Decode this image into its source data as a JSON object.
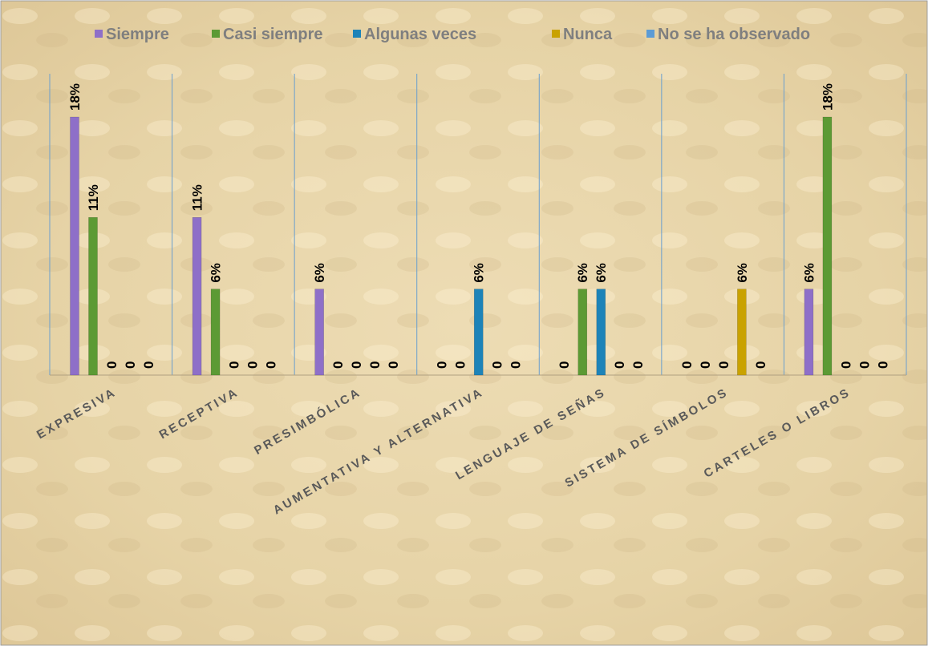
{
  "chart_data": {
    "type": "bar",
    "categories": [
      "EXPRESIVA",
      "RECEPTIVA",
      "PRESIMBÓLICA",
      "AUMENTATIVA Y ALTERNATIVA",
      "LENGUAJE DE SEÑAS",
      "SISTEMA DE SÍMBOLOS",
      "CARTELES O LIBROS"
    ],
    "series": [
      {
        "name": "Siempre",
        "color": "#8e6fc8",
        "values": [
          18,
          11,
          6,
          0,
          0,
          0,
          6
        ],
        "value_labels": [
          "18%",
          "11%",
          "6%",
          "0",
          "0",
          "0",
          "6%"
        ]
      },
      {
        "name": "Casi siempre",
        "color": "#5c9a34",
        "values": [
          11,
          6,
          0,
          0,
          6,
          0,
          18
        ],
        "value_labels": [
          "11%",
          "6%",
          "0",
          "0",
          "6%",
          "0",
          "18%"
        ]
      },
      {
        "name": "Algunas veces",
        "color": "#1d83b8",
        "values": [
          0,
          0,
          0,
          6,
          6,
          0,
          0
        ],
        "value_labels": [
          "0",
          "0",
          "0",
          "6%",
          "6%",
          "0",
          "0"
        ]
      },
      {
        "name": "Nunca",
        "color": "#c9a200",
        "values": [
          0,
          0,
          0,
          0,
          0,
          6,
          0
        ],
        "value_labels": [
          "0",
          "0",
          "0",
          "0",
          "0",
          "6%",
          "0"
        ]
      },
      {
        "name": "No se ha observado",
        "color": "#5b9bd5",
        "values": [
          0,
          0,
          0,
          0,
          0,
          0,
          0
        ],
        "value_labels": [
          "0",
          "0",
          "0",
          "0",
          "0",
          "0",
          "0"
        ]
      }
    ],
    "legend": "top"
  }
}
